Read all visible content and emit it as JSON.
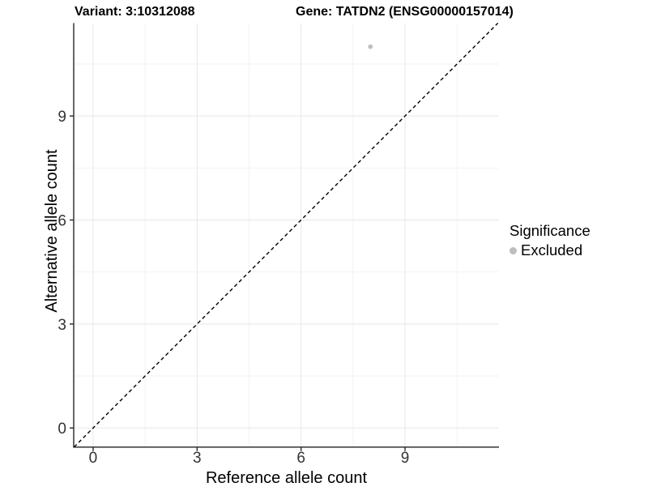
{
  "chart_data": {
    "type": "scatter",
    "title_left": "Variant: 3:10312088",
    "title_right": "Gene: TATDN2 (ENSG00000157014)",
    "xlabel": "Reference allele count",
    "ylabel": "Alternative allele count",
    "xlim": [
      -0.56,
      11.71
    ],
    "ylim": [
      -0.55,
      11.68
    ],
    "x_ticks": [
      0,
      3,
      6,
      9
    ],
    "y_ticks": [
      0,
      3,
      6,
      9
    ],
    "x_minor_ticks": [
      1.5,
      4.5,
      7.5,
      10.5
    ],
    "y_minor_ticks": [
      1.5,
      4.5,
      7.5,
      10.5
    ],
    "grid": "major and minor gridlines, white panel background",
    "reference_line": {
      "equation": "y = x",
      "style": "dashed",
      "color": "#000000"
    },
    "series": [
      {
        "name": "Excluded",
        "color": "#bebebe",
        "points": [
          {
            "x": 8,
            "y": 11
          }
        ]
      }
    ],
    "legend": {
      "title": "Significance",
      "position": "right",
      "items": [
        {
          "label": "Excluded",
          "color": "#bebebe",
          "marker": "circle"
        }
      ]
    },
    "colors": {
      "grid_major": "#e7e7e7",
      "grid_minor": "#f2f2f2",
      "axis_line": "#333333",
      "tick_label": "#333333",
      "point": "#bebebe",
      "background": "#ffffff"
    }
  }
}
